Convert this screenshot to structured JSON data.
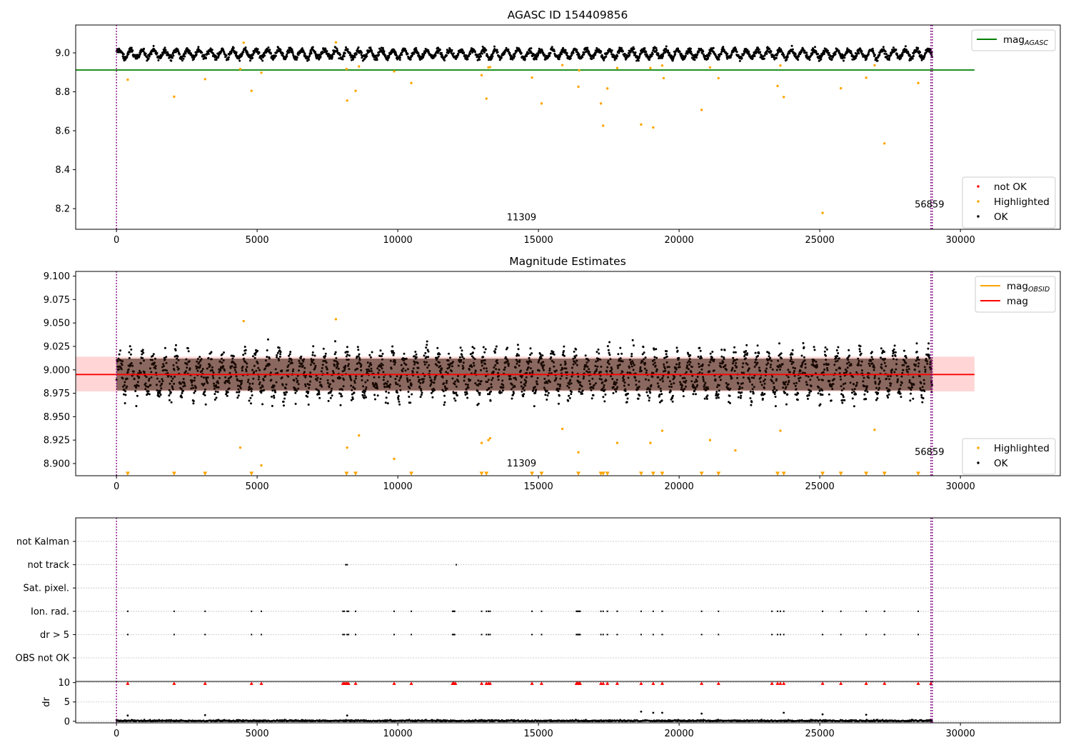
{
  "chart_data": [
    {
      "type": "scatter",
      "title": "AGASC ID 154409856",
      "xlim": [
        -1450,
        33550
      ],
      "ylim": [
        8.094,
        9.143
      ],
      "xticks": [
        0,
        5000,
        10000,
        15000,
        20000,
        25000,
        30000
      ],
      "yticks": [
        8.2,
        8.4,
        8.6,
        8.8,
        9.0
      ],
      "ytick_labels": [
        "8.2",
        "8.4",
        "8.6",
        "8.8",
        "9.0"
      ],
      "vlines": [
        {
          "x": 0,
          "color": "#800080"
        },
        {
          "x": 28950,
          "color": "#800080"
        },
        {
          "x": 29000,
          "color": "#800080"
        }
      ],
      "obs_labels": [
        {
          "text": "11309",
          "x": 14400,
          "y": 8.14
        },
        {
          "text": "56859",
          "x": 28900,
          "y": 8.205
        }
      ],
      "hlines": [
        {
          "name": "mag_AGASC",
          "y": 8.912,
          "x0": -1450,
          "x1": 30500,
          "color": "#008000"
        }
      ],
      "ok_band": {
        "x0": 0,
        "x1": 29000,
        "center": 8.995,
        "amplitude": 0.025,
        "period": 405,
        "noise": 0.012
      },
      "series": [
        {
          "name": "not OK",
          "color": "#ff0000",
          "x": [],
          "y": []
        },
        {
          "name": "Highlighted",
          "color": "#ffa500",
          "x": [
            400,
            2050,
            3150,
            4400,
            4520,
            4800,
            5150,
            7800,
            8180,
            8200,
            8500,
            8620,
            9870,
            10480,
            12980,
            13150,
            13220,
            13280,
            14770,
            15110,
            15850,
            16420,
            16450,
            17220,
            17300,
            17450,
            17800,
            18650,
            18980,
            19080,
            19400,
            19450,
            20800,
            21100,
            21400,
            23500,
            23600,
            23720,
            25100,
            25750,
            26650,
            26950,
            27300,
            28500
          ],
          "y": [
            8.862,
            8.775,
            8.865,
            8.917,
            9.052,
            8.805,
            8.898,
            9.054,
            8.917,
            8.755,
            8.805,
            8.93,
            8.905,
            8.845,
            8.885,
            8.765,
            8.925,
            8.927,
            8.873,
            8.74,
            8.937,
            8.826,
            8.91,
            8.74,
            8.626,
            8.817,
            8.922,
            8.632,
            8.922,
            8.617,
            8.935,
            8.87,
            8.707,
            8.925,
            8.87,
            8.83,
            8.935,
            8.773,
            8.178,
            8.818,
            8.872,
            8.936,
            8.535,
            8.845
          ]
        },
        {
          "name": "OK",
          "color": "#000000",
          "x": [],
          "y": []
        }
      ],
      "legends": [
        {
          "position": "upper right",
          "entries": [
            {
              "label": "mag",
              "sub": "AGASC",
              "color": "#008000",
              "kind": "line"
            }
          ]
        },
        {
          "position": "lower right",
          "entries": [
            {
              "label": "not OK",
              "color": "#ff0000",
              "kind": "dot"
            },
            {
              "label": "Highlighted",
              "color": "#ffa500",
              "kind": "dot"
            },
            {
              "label": "OK",
              "color": "#000000",
              "kind": "dot"
            }
          ]
        }
      ]
    },
    {
      "type": "scatter",
      "title": "Magnitude Estimates",
      "xlim": [
        -1450,
        33550
      ],
      "ylim": [
        8.887,
        9.105
      ],
      "xticks": [
        0,
        5000,
        10000,
        15000,
        20000,
        25000,
        30000
      ],
      "yticks": [
        8.9,
        8.925,
        8.95,
        8.975,
        9.0,
        9.025,
        9.05,
        9.075,
        9.1
      ],
      "ytick_labels": [
        "8.900",
        "8.925",
        "8.950",
        "8.975",
        "9.000",
        "9.025",
        "9.050",
        "9.075",
        "9.100"
      ],
      "vlines": [
        {
          "x": 0,
          "color": "#800080"
        },
        {
          "x": 28950,
          "color": "#800080"
        },
        {
          "x": 29000,
          "color": "#800080"
        }
      ],
      "obs_labels": [
        {
          "text": "11309",
          "x": 14400,
          "y": 8.897
        },
        {
          "text": "56859",
          "x": 28900,
          "y": 8.909
        }
      ],
      "band": {
        "x0": -1450,
        "x1": 30500,
        "y0": 8.977,
        "y1": 9.014,
        "color": "#ffb3b3"
      },
      "hlines": [
        {
          "name": "mag",
          "y": 8.995,
          "x0": -1450,
          "x1": 30500,
          "color": "#ff0000"
        }
      ],
      "ok_band": {
        "x0": 0,
        "x1": 29000,
        "center": 8.995,
        "amplitude": 0.022,
        "period": 405,
        "noise": 0.012
      },
      "series": [
        {
          "name": "Highlighted",
          "color": "#ffa500",
          "x": [
            4400,
            4520,
            5150,
            7800,
            8200,
            8620,
            9870,
            12980,
            13220,
            13280,
            15850,
            16420,
            17800,
            18980,
            19400,
            21100,
            22000,
            23600,
            26950
          ],
          "y": [
            8.917,
            9.052,
            8.898,
            9.054,
            8.917,
            8.93,
            8.905,
            8.922,
            8.925,
            8.927,
            8.937,
            8.912,
            8.922,
            8.922,
            8.935,
            8.925,
            8.914,
            8.935,
            8.936
          ]
        },
        {
          "name": "OK",
          "color": "#000000",
          "x": [],
          "y": []
        }
      ],
      "low_markers": {
        "y": 8.889,
        "color": "#ffa500",
        "x": [
          400,
          2050,
          3150,
          4800,
          8180,
          8500,
          10480,
          12980,
          13150,
          14770,
          15110,
          16420,
          17220,
          17300,
          17450,
          18650,
          19080,
          19400,
          20800,
          21400,
          23500,
          23720,
          25100,
          25750,
          26650,
          27300,
          28500
        ]
      },
      "legends": [
        {
          "position": "upper right",
          "entries": [
            {
              "label": "mag",
              "sub": "OBSID",
              "color": "#ffa500",
              "kind": "line"
            },
            {
              "label": "mag",
              "sub": "",
              "color": "#ff0000",
              "kind": "line"
            }
          ]
        },
        {
          "position": "lower right",
          "entries": [
            {
              "label": "Highlighted",
              "color": "#ffa500",
              "kind": "dot"
            },
            {
              "label": "OK",
              "color": "#000000",
              "kind": "dot"
            }
          ]
        }
      ]
    },
    {
      "type": "scatter",
      "title": "",
      "xlim": [
        -1450,
        33550
      ],
      "categories": [
        "not Kalman",
        "not track",
        "Sat. pixel.",
        "Ion. rad.",
        "dr > 5",
        "OBS not OK"
      ],
      "vlines": [
        {
          "x": 0,
          "color": "#800080"
        },
        {
          "x": 28950,
          "color": "#800080"
        },
        {
          "x": 29000,
          "color": "#800080"
        }
      ],
      "flags": {
        "not Kalman": [],
        "not track": [
          8150,
          8200,
          12080
        ],
        "Sat. pixel.": [],
        "Ion. rad.": [
          400,
          2050,
          3150,
          4800,
          5150,
          8050,
          8100,
          8200,
          8250,
          8500,
          9870,
          10480,
          11950,
          11980,
          12000,
          12020,
          12980,
          13150,
          13220,
          13280,
          14770,
          15110,
          16350,
          16380,
          16420,
          16450,
          16480,
          17220,
          17300,
          17450,
          17800,
          18650,
          19080,
          19400,
          20800,
          21400,
          23300,
          23500,
          23600,
          23720,
          25100,
          25750,
          26650,
          27300,
          28500
        ],
        "dr > 5": [
          400,
          2050,
          3150,
          4800,
          5150,
          8050,
          8100,
          8200,
          8250,
          8500,
          9870,
          10480,
          11950,
          11980,
          12000,
          12020,
          12980,
          13150,
          13220,
          13280,
          14770,
          15110,
          16350,
          16380,
          16420,
          16450,
          16480,
          17220,
          17300,
          17450,
          17800,
          18650,
          19080,
          19400,
          20800,
          21400,
          23300,
          23500,
          23600,
          23720,
          25100,
          25750,
          26650,
          27300,
          28500
        ],
        "OBS not OK": []
      }
    },
    {
      "type": "scatter",
      "title": "",
      "ylabel": "dr",
      "xlim": [
        -1450,
        33550
      ],
      "ylim": [
        -0.4,
        10.3
      ],
      "xticks": [
        0,
        5000,
        10000,
        15000,
        20000,
        25000,
        30000
      ],
      "yticks": [
        0,
        5,
        10
      ],
      "ytick_labels": [
        "0",
        "5",
        "10"
      ],
      "vlines": [
        {
          "x": 0,
          "color": "#800080"
        },
        {
          "x": 28950,
          "color": "#800080"
        },
        {
          "x": 29000,
          "color": "#800080"
        }
      ],
      "capped": {
        "y": 9.8,
        "color": "#ff0000",
        "x": [
          400,
          2050,
          3150,
          4800,
          5150,
          8050,
          8100,
          8150,
          8200,
          8250,
          8500,
          9870,
          10480,
          11950,
          11980,
          12000,
          12050,
          12980,
          13150,
          13220,
          13280,
          14770,
          15110,
          16350,
          16380,
          16420,
          16450,
          16480,
          17220,
          17300,
          17450,
          17800,
          18650,
          19080,
          19400,
          20800,
          21400,
          23300,
          23500,
          23600,
          23720,
          25100,
          25750,
          26650,
          27300,
          28500,
          28950
        ]
      },
      "outliers": {
        "x": [
          400,
          3150,
          8200,
          18650,
          19080,
          19400,
          20800,
          23720,
          25100,
          26650
        ],
        "y": [
          1.5,
          1.6,
          1.5,
          2.5,
          2.2,
          2.2,
          2.0,
          2.2,
          1.8,
          1.7
        ]
      },
      "base_noise": {
        "x0": 0,
        "x1": 29000,
        "max": 1.0
      }
    }
  ]
}
